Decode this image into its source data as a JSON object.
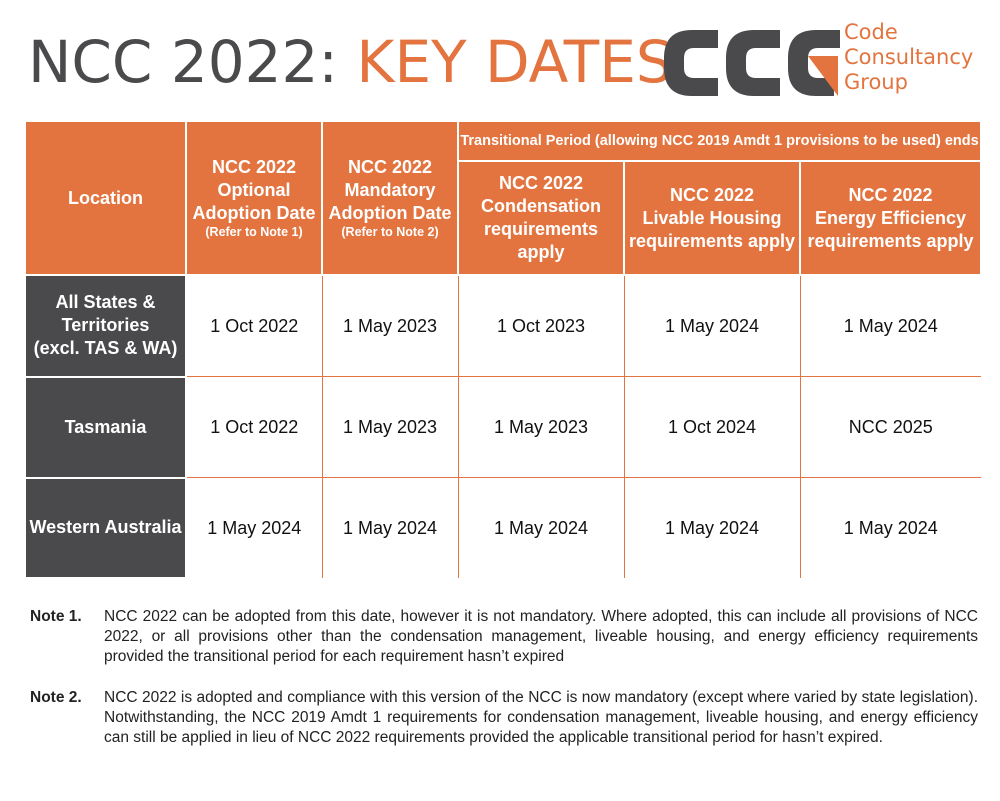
{
  "title": {
    "part1": "NCC 2022:",
    "part2": "KEY DATES"
  },
  "logo": {
    "mark": "CCG",
    "lines": [
      "Code",
      "Consultancy",
      "Group"
    ],
    "colors": {
      "grey": "#4a4a4c",
      "orange": "#e3743f"
    }
  },
  "table": {
    "transitional_header": "Transitional Period (allowing NCC 2019 Amdt 1 provisions to be used) ends",
    "columns": {
      "location": "Location",
      "optional": {
        "lines": [
          "NCC 2022",
          "Optional",
          "Adoption Date"
        ],
        "ref": "(Refer to Note 1)"
      },
      "mandatory": {
        "lines": [
          "NCC 2022",
          "Mandatory",
          "Adoption Date"
        ],
        "ref": "(Refer to Note 2)"
      },
      "condensation": {
        "lines": [
          "NCC 2022",
          "Condensation",
          "requirements apply"
        ]
      },
      "livable": {
        "lines": [
          "NCC 2022",
          "Livable Housing",
          "requirements apply"
        ]
      },
      "energy": {
        "lines": [
          "NCC 2022",
          "Energy Efficiency",
          "requirements apply"
        ]
      }
    },
    "rows": [
      {
        "location": [
          "All States &",
          "Territories",
          "(excl. TAS & WA)"
        ],
        "values": [
          "1 Oct 2022",
          "1 May 2023",
          "1 Oct 2023",
          "1 May 2024",
          "1 May 2024"
        ]
      },
      {
        "location": [
          "Tasmania"
        ],
        "values": [
          "1 Oct 2022",
          "1 May 2023",
          "1 May 2023",
          "1 Oct 2024",
          "NCC 2025"
        ]
      },
      {
        "location": [
          "Western Australia"
        ],
        "values": [
          "1 May 2024",
          "1 May 2024",
          "1 May 2024",
          "1 May 2024",
          "1 May 2024"
        ]
      }
    ]
  },
  "notes": [
    {
      "label": "Note 1.",
      "text": "NCC 2022 can be adopted from this date, however it is not mandatory. Where adopted, this can include all provisions of NCC 2022, or all provisions other than the condensation management, liveable housing, and energy efficiency requirements provided the transitional period for each requirement hasn’t expired"
    },
    {
      "label": "Note 2.",
      "text": "NCC 2022 is adopted and compliance with this version of the NCC is now mandatory (except where varied by state legislation). Notwithstanding, the NCC 2019 Amdt 1 requirements for condensation management, liveable housing, and energy efficiency can still be applied in lieu of NCC 2022 requirements provided the applicable transitional period for hasn’t expired."
    }
  ],
  "colors": {
    "orange": "#e3743f",
    "dark_grey": "#4a4a4c",
    "white": "#ffffff"
  }
}
